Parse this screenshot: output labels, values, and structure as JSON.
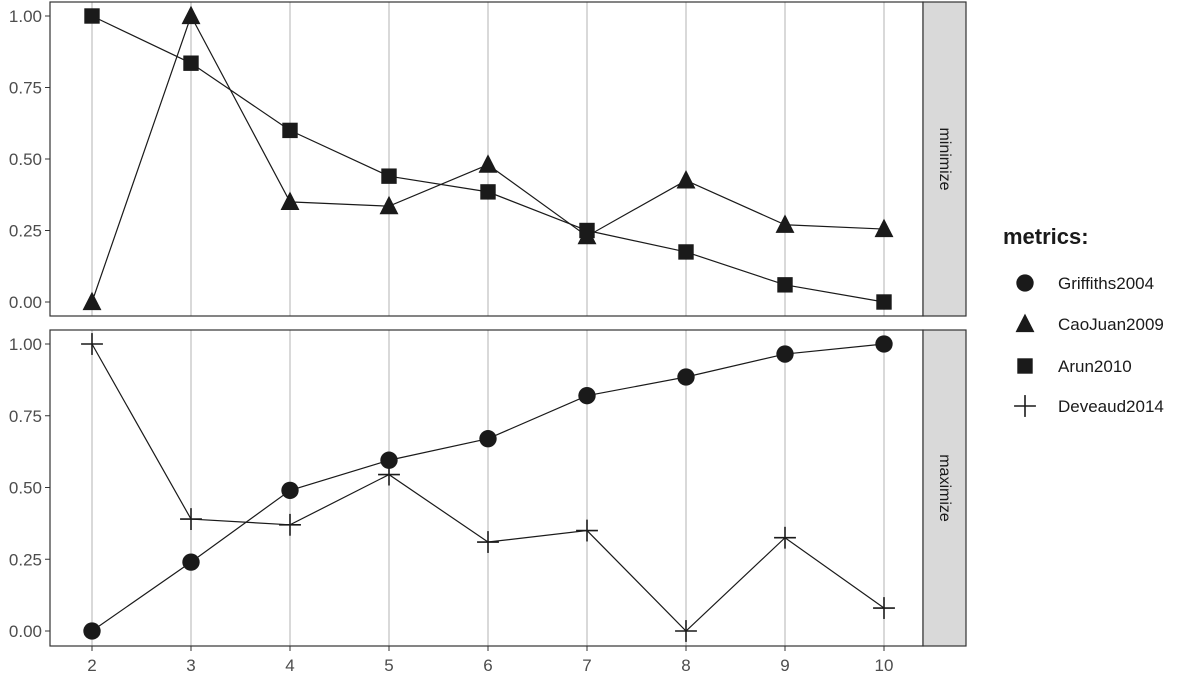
{
  "chart_data": {
    "type": "line",
    "x": [
      2,
      3,
      4,
      5,
      6,
      7,
      8,
      9,
      10
    ],
    "x_tick_labels": [
      "2",
      "3",
      "4",
      "5",
      "6",
      "7",
      "8",
      "9",
      "10"
    ],
    "y_tick_labels": [
      "0.00",
      "0.25",
      "0.50",
      "0.75",
      "1.00"
    ],
    "ylim": [
      0,
      1
    ],
    "grid": "vertical",
    "facets": [
      {
        "strip_label": "minimize",
        "series": [
          {
            "name": "CaoJuan2009",
            "shape": "triangle",
            "values": [
              0.0,
              1.0,
              0.35,
              0.335,
              0.48,
              0.23,
              0.425,
              0.27,
              0.255
            ]
          },
          {
            "name": "Arun2010",
            "shape": "square",
            "values": [
              1.0,
              0.835,
              0.6,
              0.44,
              0.385,
              0.25,
              0.175,
              0.06,
              0.0
            ]
          }
        ]
      },
      {
        "strip_label": "maximize",
        "series": [
          {
            "name": "Griffiths2004",
            "shape": "circle",
            "values": [
              0.0,
              0.24,
              0.49,
              0.595,
              0.67,
              0.82,
              0.885,
              0.965,
              1.0
            ]
          },
          {
            "name": "Deveaud2014",
            "shape": "cross",
            "values": [
              1.0,
              0.39,
              0.37,
              0.545,
              0.31,
              0.35,
              0.0,
              0.325,
              0.08
            ]
          }
        ]
      }
    ],
    "legend": {
      "title": "metrics:",
      "position": "right",
      "entries": [
        {
          "label": "Griffiths2004",
          "shape": "circle"
        },
        {
          "label": "CaoJuan2009",
          "shape": "triangle"
        },
        {
          "label": "Arun2010",
          "shape": "square"
        },
        {
          "label": "Deveaud2014",
          "shape": "cross"
        }
      ]
    },
    "colors": {
      "marks": "#1a1a1a",
      "grid": "#b3b3b3",
      "strip_fill": "#d9d9d9",
      "panel_border": "#333333"
    }
  }
}
